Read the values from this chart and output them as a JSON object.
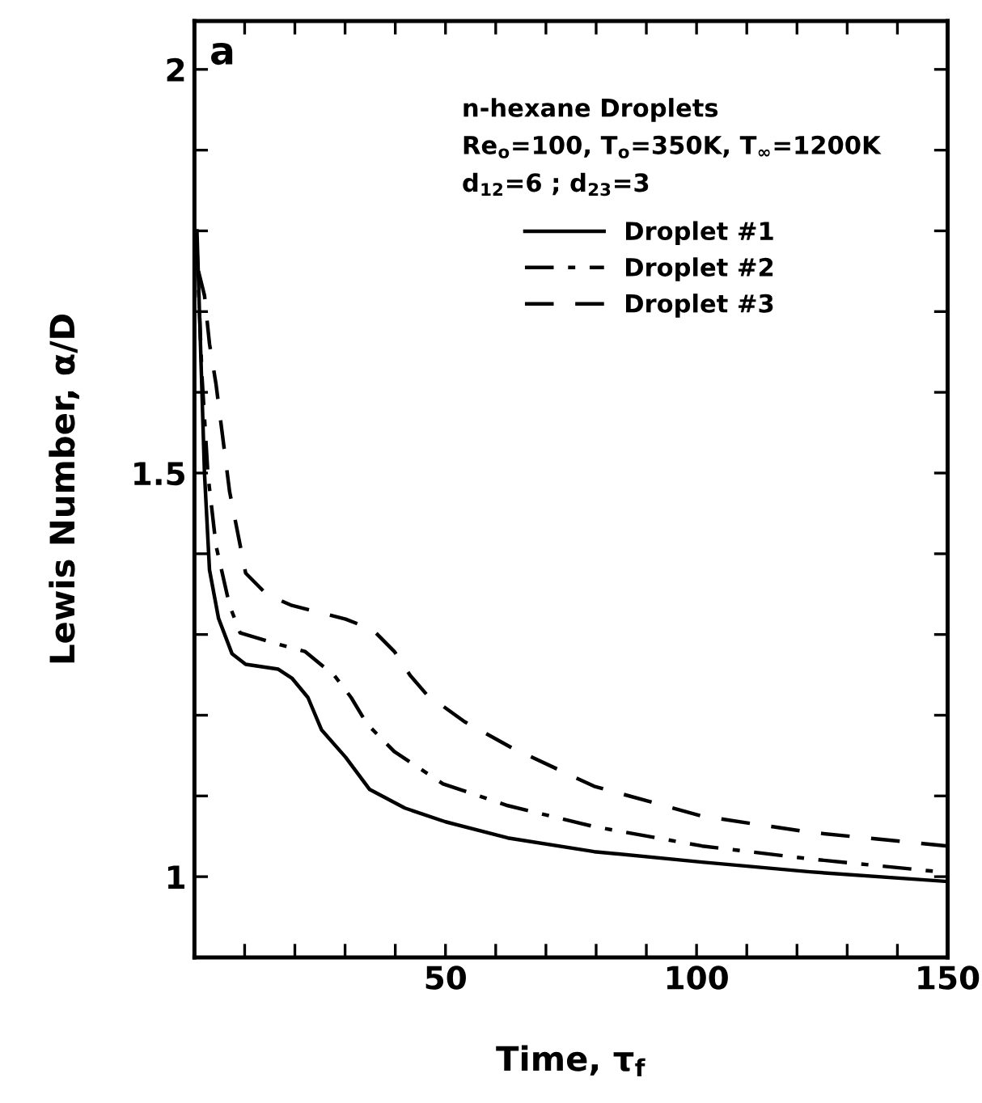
{
  "chart_data": {
    "type": "line",
    "xlabel": "Time, τ$_{f}$",
    "ylabel": "Lewis Number, α/D",
    "annotations": [
      "a",
      "n-hexane Droplets",
      "Re$_{o}$=100, T$_{o}$=350K, T$_{∞}$=1200K",
      "d$_{12}$=6 ; d$_{23}$=3"
    ],
    "xlim": [
      0,
      150
    ],
    "ylim": [
      0.9,
      2.06
    ],
    "xticks": [
      {
        "value": 10,
        "label": null
      },
      {
        "value": 20,
        "label": null
      },
      {
        "value": 30,
        "label": null
      },
      {
        "value": 40,
        "label": null
      },
      50,
      {
        "value": 60,
        "label": null
      },
      {
        "value": 70,
        "label": null
      },
      {
        "value": 80,
        "label": null
      },
      {
        "value": 90,
        "label": null
      },
      100,
      {
        "value": 110,
        "label": null
      },
      {
        "value": 120,
        "label": null
      },
      {
        "value": 130,
        "label": null
      },
      {
        "value": 140,
        "label": null
      },
      150
    ],
    "yticks": [
      {
        "value": 0.9,
        "label": null
      },
      1,
      {
        "value": 1.1,
        "label": null
      },
      {
        "value": 1.2,
        "label": null
      },
      {
        "value": 1.3,
        "label": null
      },
      {
        "value": 1.4,
        "label": null
      },
      1.5,
      {
        "value": 1.6,
        "label": null
      },
      {
        "value": 1.7,
        "label": null
      },
      {
        "value": 1.8,
        "label": null
      },
      {
        "value": 1.9,
        "label": null
      },
      2
    ],
    "legend": "top right",
    "grid": false,
    "marker": "none",
    "series": [
      {
        "name": "Droplet #1",
        "color": "#000000",
        "line_style": "solid",
        "x": [
          0.5,
          1,
          2,
          3,
          4.8,
          7.5,
          10.2,
          16.7,
          19.4,
          22.6,
          25.3,
          30.1,
          34.9,
          41.9,
          50,
          62.4,
          79.6,
          101.1,
          122.6,
          150
        ],
        "values": [
          1.8,
          1.7,
          1.5,
          1.38,
          1.32,
          1.276,
          1.263,
          1.257,
          1.246,
          1.222,
          1.182,
          1.148,
          1.108,
          1.085,
          1.068,
          1.048,
          1.031,
          1.018,
          1.006,
          0.994
        ]
      },
      {
        "name": "Droplet #2",
        "color": "#000000",
        "line_style": "dashdot",
        "x": [
          0.5,
          1.5,
          2.7,
          4.3,
          7,
          9.1,
          16.1,
          22,
          27.9,
          31.2,
          34.4,
          39.8,
          49.5,
          62.4,
          79.6,
          101.1,
          122.6,
          150
        ],
        "values": [
          1.78,
          1.62,
          1.497,
          1.41,
          1.336,
          1.302,
          1.289,
          1.279,
          1.249,
          1.222,
          1.189,
          1.155,
          1.115,
          1.088,
          1.062,
          1.038,
          1.022,
          1.005
        ]
      },
      {
        "name": "Droplet #3",
        "color": "#000000",
        "line_style": "dashed",
        "x": [
          0.8,
          2,
          3,
          4.3,
          7,
          10.2,
          14.5,
          19.4,
          30.1,
          35.5,
          39.8,
          43,
          46.2,
          53.8,
          63.4,
          79.6,
          101.1,
          122.6,
          150
        ],
        "values": [
          1.75,
          1.72,
          1.66,
          1.61,
          1.477,
          1.376,
          1.349,
          1.336,
          1.319,
          1.306,
          1.279,
          1.249,
          1.226,
          1.192,
          1.159,
          1.112,
          1.075,
          1.055,
          1.038
        ]
      }
    ]
  }
}
